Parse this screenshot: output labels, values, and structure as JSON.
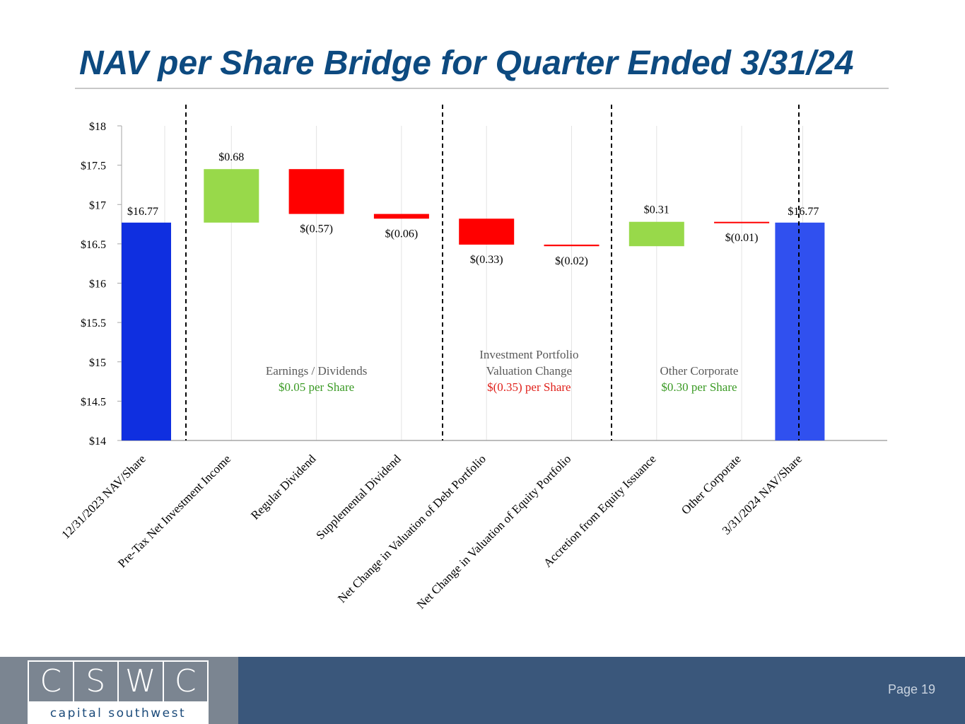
{
  "header": {
    "title": "NAV per Share Bridge for Quarter Ended 3/31/24"
  },
  "footer": {
    "logo_letters": [
      "C",
      "S",
      "W",
      "C"
    ],
    "logo_tagline": "capital southwest",
    "page_number": "Page 19"
  },
  "colors": {
    "title": "#0d4a80",
    "start_bar": "#0f2fe0",
    "end_bar": "#3050ef",
    "increase": "#98d94a",
    "decrease": "#ff0000",
    "section_gray": "#595959",
    "section_green": "#3a9a24",
    "section_red": "#e0201a"
  },
  "chart_data": {
    "type": "bar",
    "subtype": "waterfall",
    "title": "NAV per Share Bridge for Quarter Ended 3/31/24",
    "ylim": [
      14,
      18
    ],
    "yticks": [
      14,
      14.5,
      15,
      15.5,
      16,
      16.5,
      17,
      17.5,
      18
    ],
    "ytick_labels": [
      "$14",
      "$14.5",
      "$15",
      "$15.5",
      "$16",
      "$16.5",
      "$17",
      "$17.5",
      "$18"
    ],
    "grid": true,
    "categories": [
      "12/31/2023 NAV/Share",
      "Pre-Tax Net Investment Income",
      "Regular Dividend",
      "Supplemental Dividend",
      "Net Change in Valuation of Debt Portfolio",
      "Net Change in Valuation of Equity Portfolio",
      "Accretion from Equity Issuance",
      "Other Corporate",
      "3/31/2024 NAV/Share"
    ],
    "bars": [
      {
        "kind": "total",
        "start": 0,
        "end": 16.77,
        "label": "$16.77"
      },
      {
        "kind": "increase",
        "start": 16.77,
        "end": 17.45,
        "label": "$0.68"
      },
      {
        "kind": "decrease",
        "start": 17.45,
        "end": 16.88,
        "label": "$(0.57)"
      },
      {
        "kind": "decrease",
        "start": 16.88,
        "end": 16.82,
        "label": "$(0.06)"
      },
      {
        "kind": "decrease",
        "start": 16.82,
        "end": 16.49,
        "label": "$(0.33)"
      },
      {
        "kind": "decrease",
        "start": 16.49,
        "end": 16.47,
        "label": "$(0.02)"
      },
      {
        "kind": "increase",
        "start": 16.47,
        "end": 16.78,
        "label": "$0.31"
      },
      {
        "kind": "decrease",
        "start": 16.78,
        "end": 16.77,
        "label": "$(0.01)"
      },
      {
        "kind": "total",
        "start": 0,
        "end": 16.77,
        "label": "$16.77"
      }
    ],
    "section_dividers_after_index": [
      0,
      3,
      5,
      7
    ],
    "sections": [
      {
        "lines": [
          "Earnings / Dividends"
        ],
        "value_text": "$0.05 per Share",
        "value_color": "#3a9a24",
        "first": 1,
        "last": 3
      },
      {
        "lines": [
          "Investment Portfolio",
          "Valuation Change"
        ],
        "value_text": "$(0.35) per Share",
        "value_color": "#e0201a",
        "first": 4,
        "last": 5
      },
      {
        "lines": [
          "Other Corporate"
        ],
        "value_text": "$0.30 per Share",
        "value_color": "#3a9a24",
        "first": 6,
        "last": 7
      }
    ]
  }
}
